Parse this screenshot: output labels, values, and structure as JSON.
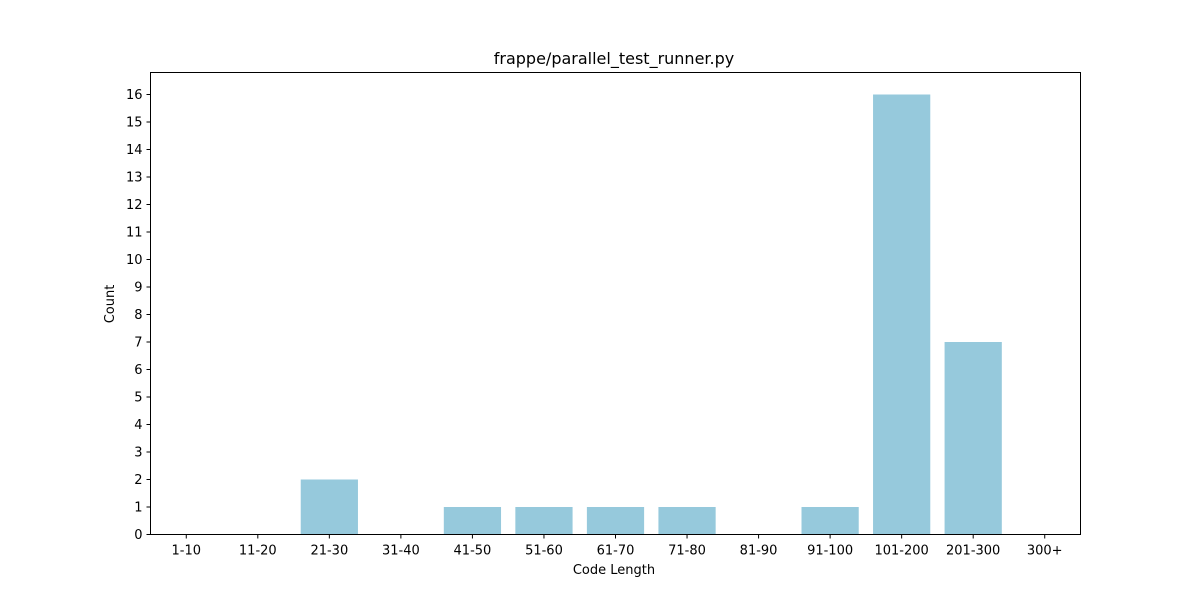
{
  "chart_data": {
    "type": "bar",
    "title": "frappe/parallel_test_runner.py",
    "xlabel": "Code Length",
    "ylabel": "Count",
    "categories": [
      "1-10",
      "11-20",
      "21-30",
      "31-40",
      "41-50",
      "51-60",
      "61-70",
      "71-80",
      "81-90",
      "91-100",
      "101-200",
      "201-300",
      "300+"
    ],
    "values": [
      0,
      0,
      2,
      0,
      1,
      1,
      1,
      1,
      0,
      1,
      16,
      7,
      0
    ],
    "ylim": [
      0,
      16.8
    ],
    "yticks": [
      0,
      1,
      2,
      3,
      4,
      5,
      6,
      7,
      8,
      9,
      10,
      11,
      12,
      13,
      14,
      15,
      16
    ],
    "grid": false,
    "bar_color": "#96c9dc"
  }
}
